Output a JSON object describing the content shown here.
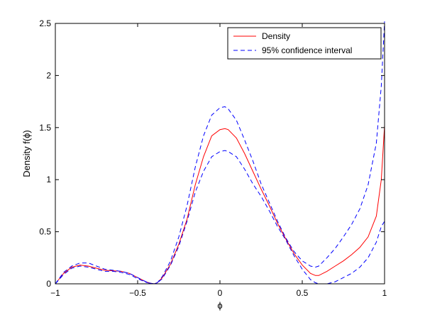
{
  "chart_data": {
    "type": "line",
    "title": "",
    "xlabel": "ϕ",
    "ylabel": "Density f(ϕ)",
    "xlim": [
      -1,
      1
    ],
    "ylim": [
      0,
      2.5
    ],
    "xticks": [
      -1,
      -0.5,
      0,
      0.5,
      1
    ],
    "xtick_labels": [
      "−1",
      "−0.5",
      "0",
      "0.5",
      "1"
    ],
    "yticks": [
      0,
      0.5,
      1,
      1.5,
      2,
      2.5
    ],
    "ytick_labels": [
      "0",
      "0.5",
      "1",
      "1.5",
      "2",
      "2.5"
    ],
    "grid": false,
    "legend_position": "top-right",
    "series": [
      {
        "name": "Density",
        "color": "#ff0000",
        "dash": "solid",
        "x": [
          -1,
          -0.95,
          -0.9,
          -0.85,
          -0.8,
          -0.75,
          -0.7,
          -0.65,
          -0.6,
          -0.55,
          -0.5,
          -0.45,
          -0.42,
          -0.4,
          -0.38,
          -0.35,
          -0.3,
          -0.25,
          -0.2,
          -0.15,
          -0.1,
          -0.05,
          0,
          0.03,
          0.05,
          0.1,
          0.15,
          0.2,
          0.25,
          0.3,
          0.35,
          0.4,
          0.45,
          0.5,
          0.55,
          0.58,
          0.6,
          0.65,
          0.7,
          0.75,
          0.8,
          0.85,
          0.9,
          0.95,
          0.98,
          1
        ],
        "y": [
          0,
          0.1,
          0.16,
          0.18,
          0.17,
          0.15,
          0.13,
          0.125,
          0.12,
          0.1,
          0.06,
          0.02,
          0.005,
          0,
          0.01,
          0.06,
          0.19,
          0.38,
          0.62,
          0.95,
          1.22,
          1.42,
          1.48,
          1.49,
          1.48,
          1.4,
          1.25,
          1.08,
          0.91,
          0.75,
          0.58,
          0.43,
          0.29,
          0.18,
          0.1,
          0.08,
          0.08,
          0.12,
          0.17,
          0.22,
          0.28,
          0.35,
          0.45,
          0.65,
          1.0,
          1.52
        ]
      },
      {
        "name": "95% confidence interval",
        "color": "#0000ff",
        "dash": "dashed",
        "x": [
          -1,
          -0.95,
          -0.9,
          -0.85,
          -0.8,
          -0.75,
          -0.7,
          -0.65,
          -0.6,
          -0.55,
          -0.5,
          -0.45,
          -0.42,
          -0.4,
          -0.38,
          -0.35,
          -0.3,
          -0.25,
          -0.2,
          -0.15,
          -0.1,
          -0.05,
          0,
          0.03,
          0.05,
          0.1,
          0.15,
          0.2,
          0.25,
          0.3,
          0.35,
          0.4,
          0.45,
          0.5,
          0.55,
          0.58,
          0.6,
          0.65,
          0.7,
          0.75,
          0.8,
          0.85,
          0.9,
          0.95,
          0.98,
          1
        ],
        "y": [
          0,
          0.11,
          0.17,
          0.2,
          0.2,
          0.17,
          0.14,
          0.13,
          0.12,
          0.1,
          0.06,
          0.02,
          0.005,
          0,
          0.01,
          0.07,
          0.22,
          0.45,
          0.75,
          1.12,
          1.42,
          1.62,
          1.69,
          1.7,
          1.68,
          1.57,
          1.38,
          1.18,
          0.96,
          0.78,
          0.6,
          0.44,
          0.31,
          0.22,
          0.17,
          0.16,
          0.17,
          0.25,
          0.34,
          0.45,
          0.57,
          0.72,
          0.95,
          1.35,
          1.9,
          2.52
        ]
      },
      {
        "name": "",
        "color": "#0000ff",
        "dash": "dashed",
        "x": [
          -1,
          -0.95,
          -0.9,
          -0.85,
          -0.8,
          -0.75,
          -0.7,
          -0.65,
          -0.6,
          -0.55,
          -0.5,
          -0.45,
          -0.42,
          -0.4,
          -0.38,
          -0.35,
          -0.3,
          -0.25,
          -0.2,
          -0.15,
          -0.1,
          -0.05,
          0,
          0.03,
          0.05,
          0.1,
          0.15,
          0.2,
          0.25,
          0.3,
          0.35,
          0.4,
          0.45,
          0.5,
          0.55,
          0.58,
          0.6,
          0.65,
          0.7,
          0.75,
          0.8,
          0.85,
          0.9,
          0.95,
          0.98,
          1
        ],
        "y": [
          0,
          0.09,
          0.15,
          0.17,
          0.16,
          0.14,
          0.12,
          0.12,
          0.11,
          0.09,
          0.05,
          0.015,
          0.003,
          0,
          0.01,
          0.05,
          0.18,
          0.36,
          0.6,
          0.88,
          1.08,
          1.22,
          1.27,
          1.28,
          1.27,
          1.22,
          1.1,
          0.96,
          0.84,
          0.7,
          0.55,
          0.42,
          0.27,
          0.14,
          0.04,
          0.01,
          0.0,
          0.0,
          0.02,
          0.06,
          0.1,
          0.16,
          0.25,
          0.4,
          0.55,
          0.6
        ]
      }
    ]
  }
}
